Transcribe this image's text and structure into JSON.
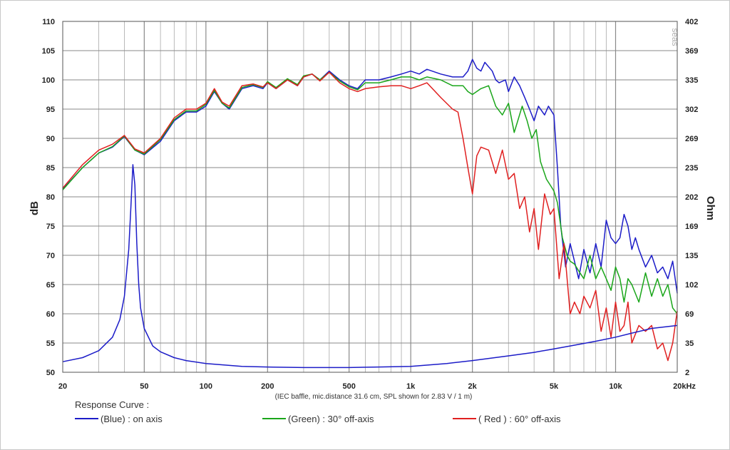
{
  "chart_data": {
    "type": "line",
    "title": "",
    "xlabel": "",
    "ylabel": "dB",
    "y2label": "Ohm",
    "x_scale": "log",
    "xlim": [
      20,
      20000
    ],
    "ylim": [
      50,
      110
    ],
    "y2_ticks": [
      "402",
      "369",
      "335",
      "302",
      "269",
      "235",
      "202",
      "169",
      "135",
      "102",
      "69",
      "35",
      "2"
    ],
    "x_ticks": [
      {
        "value": 20,
        "label": "20"
      },
      {
        "value": 50,
        "label": "50"
      },
      {
        "value": 100,
        "label": "100"
      },
      {
        "value": 200,
        "label": "200"
      },
      {
        "value": 500,
        "label": "500"
      },
      {
        "value": 1000,
        "label": "1k"
      },
      {
        "value": 2000,
        "label": "2k"
      },
      {
        "value": 5000,
        "label": "5k"
      },
      {
        "value": 10000,
        "label": "10k"
      },
      {
        "value": 20000,
        "label": "20kHz"
      }
    ],
    "y_ticks": [
      110,
      105,
      100,
      95,
      90,
      85,
      80,
      75,
      70,
      65,
      60,
      55,
      50
    ],
    "note": "(IEC baffle, mic.distance 31.6 cm, SPL shown for 2.83 V / 1 m)",
    "watermark": "seas",
    "grid": true,
    "legend_title": "Response Curve :",
    "legend_position": "bottom",
    "series": [
      {
        "name": "(Blue)  : on axis",
        "color": "#1c1cc8",
        "x": [
          20,
          25,
          30,
          35,
          40,
          45,
          50,
          60,
          70,
          80,
          90,
          100,
          110,
          120,
          130,
          150,
          170,
          190,
          200,
          220,
          250,
          280,
          300,
          330,
          360,
          400,
          450,
          500,
          550,
          600,
          700,
          800,
          900,
          1000,
          1100,
          1200,
          1400,
          1600,
          1800,
          1900,
          2000,
          2100,
          2200,
          2300,
          2500,
          2600,
          2700,
          2900,
          3000,
          3200,
          3400,
          3600,
          3800,
          4000,
          4200,
          4500,
          4700,
          5000,
          5200,
          5400,
          5700,
          6000,
          6300,
          6600,
          7000,
          7500,
          8000,
          8500,
          9000,
          9500,
          10000,
          10500,
          11000,
          11500,
          12000,
          12500,
          13000,
          14000,
          15000,
          16000,
          17000,
          18000,
          19000,
          20000
        ],
        "y": [
          81.3,
          85.0,
          87.5,
          88.5,
          90.3,
          88.0,
          87.2,
          89.5,
          93.0,
          94.5,
          94.5,
          95.5,
          98.0,
          96.0,
          95.0,
          98.5,
          99.0,
          98.5,
          99.5,
          98.5,
          100.0,
          99.0,
          100.5,
          101.0,
          100.0,
          101.5,
          100.0,
          99.0,
          98.5,
          100.0,
          100.0,
          100.5,
          101.0,
          101.5,
          101.0,
          101.8,
          101.0,
          100.5,
          100.5,
          101.5,
          103.5,
          102.0,
          101.5,
          103.0,
          101.5,
          100.0,
          99.5,
          100.0,
          98.0,
          100.5,
          99.0,
          97.0,
          95.0,
          93.0,
          95.5,
          94.0,
          95.5,
          94.0,
          85.0,
          75.0,
          68.0,
          72.0,
          69.0,
          66.0,
          71.0,
          67.0,
          72.0,
          68.0,
          76.0,
          73.0,
          72.0,
          73.0,
          77.0,
          75.0,
          71.0,
          73.0,
          71.0,
          68.0,
          70.0,
          67.0,
          68.0,
          66.0,
          69.0,
          63.5
        ]
      },
      {
        "name": "(Green) : 30° off-axis",
        "color": "#1aa61a",
        "x": [
          20,
          25,
          30,
          35,
          40,
          45,
          50,
          60,
          70,
          80,
          90,
          100,
          110,
          120,
          130,
          150,
          170,
          190,
          200,
          220,
          250,
          280,
          300,
          330,
          360,
          400,
          450,
          500,
          550,
          600,
          700,
          800,
          900,
          1000,
          1100,
          1200,
          1400,
          1600,
          1800,
          1900,
          2000,
          2200,
          2400,
          2600,
          2800,
          3000,
          3200,
          3500,
          3700,
          3900,
          4100,
          4300,
          4600,
          4800,
          5000,
          5200,
          5500,
          5800,
          6000,
          6300,
          6700,
          7000,
          7500,
          8000,
          8500,
          9000,
          9500,
          10000,
          10500,
          11000,
          11500,
          12000,
          13000,
          14000,
          15000,
          16000,
          17000,
          18000,
          19000,
          20000
        ],
        "y": [
          81.2,
          85.0,
          87.5,
          88.6,
          90.4,
          88.0,
          87.3,
          89.8,
          93.2,
          94.7,
          94.7,
          95.8,
          98.2,
          96.0,
          95.2,
          98.7,
          99.2,
          98.7,
          99.7,
          98.7,
          100.2,
          99.2,
          100.7,
          101.0,
          100.0,
          101.3,
          99.8,
          98.8,
          98.3,
          99.5,
          99.5,
          100.0,
          100.5,
          100.5,
          100.0,
          100.5,
          100.0,
          99.0,
          99.0,
          98.0,
          97.5,
          98.5,
          99.0,
          95.5,
          94.0,
          96.0,
          91.0,
          95.5,
          93.0,
          90.0,
          91.5,
          86.0,
          83.0,
          82.0,
          81.0,
          79.0,
          73.0,
          70.0,
          69.0,
          68.5,
          67.0,
          66.0,
          70.0,
          66.0,
          68.0,
          66.0,
          64.0,
          68.0,
          66.0,
          62.0,
          66.0,
          65.0,
          62.0,
          67.0,
          63.0,
          66.0,
          63.0,
          65.0,
          61.0,
          60.0
        ]
      },
      {
        "name": "( Red )  : 60° off-axis",
        "color": "#e02020",
        "x": [
          20,
          25,
          30,
          35,
          40,
          45,
          50,
          60,
          70,
          80,
          90,
          100,
          110,
          120,
          130,
          150,
          170,
          190,
          200,
          220,
          250,
          280,
          300,
          330,
          360,
          400,
          450,
          500,
          550,
          600,
          700,
          800,
          900,
          1000,
          1100,
          1200,
          1400,
          1600,
          1700,
          1800,
          1900,
          2000,
          2100,
          2200,
          2400,
          2600,
          2800,
          3000,
          3200,
          3400,
          3600,
          3800,
          4000,
          4200,
          4500,
          4800,
          5000,
          5300,
          5600,
          6000,
          6300,
          6700,
          7000,
          7500,
          8000,
          8500,
          9000,
          9500,
          10000,
          10500,
          11000,
          11500,
          12000,
          13000,
          14000,
          15000,
          16000,
          17000,
          18000,
          19000,
          20000
        ],
        "y": [
          81.5,
          85.5,
          88.0,
          89.0,
          90.5,
          88.2,
          87.5,
          90.0,
          93.5,
          95.0,
          95.0,
          96.0,
          98.5,
          96.2,
          95.5,
          99.0,
          99.3,
          98.8,
          99.5,
          98.5,
          100.0,
          99.0,
          100.5,
          101.0,
          99.8,
          101.3,
          99.5,
          98.5,
          98.0,
          98.5,
          98.8,
          99.0,
          99.0,
          98.5,
          99.0,
          99.5,
          97.0,
          95.0,
          94.5,
          90.0,
          85.0,
          80.5,
          87.0,
          88.5,
          88.0,
          84.0,
          88.0,
          83.0,
          84.0,
          78.0,
          80.0,
          74.0,
          78.0,
          71.0,
          80.5,
          77.0,
          78.0,
          66.0,
          72.0,
          60.0,
          62.0,
          60.0,
          63.0,
          61.0,
          64.0,
          57.0,
          61.0,
          56.0,
          62.0,
          57.0,
          58.0,
          62.0,
          55.0,
          58.0,
          57.0,
          58.0,
          54.0,
          55.0,
          52.0,
          55.0,
          60.5
        ]
      },
      {
        "name": "impedance",
        "color": "#1c1cc8",
        "x": [
          20,
          25,
          30,
          35,
          38,
          40,
          42,
          43,
          44,
          45,
          46,
          47,
          48,
          50,
          55,
          60,
          70,
          80,
          100,
          150,
          200,
          300,
          500,
          700,
          1000,
          1500,
          2000,
          3000,
          4000,
          5000,
          6000,
          8000,
          10000,
          12000,
          15000,
          20000
        ],
        "y": [
          51.8,
          52.5,
          53.7,
          56.0,
          59.0,
          63.0,
          71.0,
          78.0,
          85.5,
          82.0,
          72.0,
          65.0,
          61.0,
          57.5,
          54.5,
          53.5,
          52.5,
          52.0,
          51.5,
          51.0,
          50.9,
          50.8,
          50.8,
          50.9,
          51.0,
          51.5,
          52.0,
          52.8,
          53.4,
          54.0,
          54.5,
          55.3,
          56.0,
          56.7,
          57.5,
          58.0
        ]
      }
    ]
  }
}
